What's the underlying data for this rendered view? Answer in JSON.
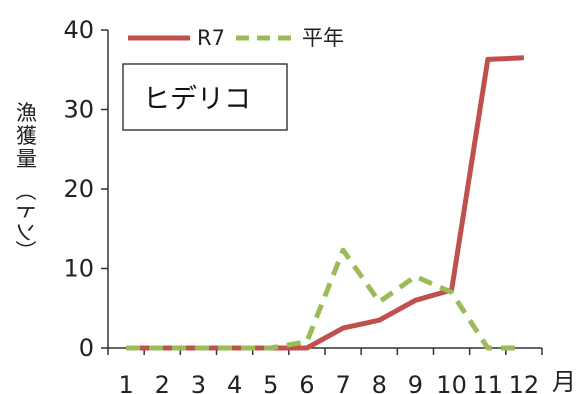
{
  "chart_data": {
    "type": "line",
    "categories": [
      "1",
      "2",
      "3",
      "4",
      "5",
      "6",
      "7",
      "8",
      "9",
      "10",
      "11",
      "12"
    ],
    "x_unit": "月",
    "ylabel": "漁獲量（トン）",
    "ylim": [
      0,
      40
    ],
    "yticks": [
      "0",
      "10",
      "20",
      "30",
      "40"
    ],
    "grid": false,
    "legend_position": "top-left",
    "annotation": "ヒデリコ",
    "series": [
      {
        "name": "R7",
        "color": "#c0504d",
        "dash": "solid",
        "values": [
          0,
          0,
          0,
          0,
          0,
          0,
          2.5,
          3.5,
          6,
          7.3,
          36.3,
          36.5
        ]
      },
      {
        "name": "平年",
        "color": "#9bbb59",
        "dash": "dashed",
        "values": [
          0,
          0,
          0,
          0,
          0,
          0.8,
          12.3,
          5.8,
          9,
          7,
          0,
          0
        ]
      }
    ]
  }
}
